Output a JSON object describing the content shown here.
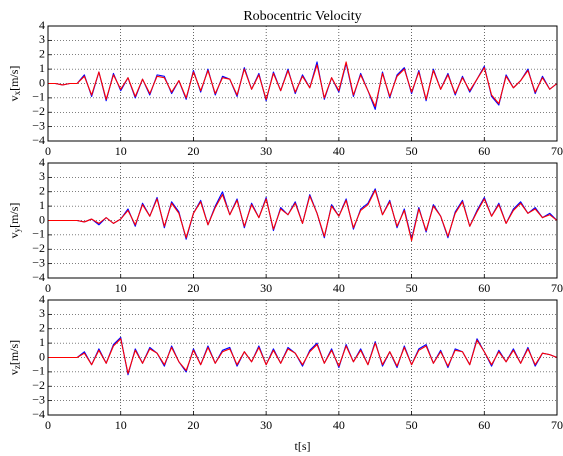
{
  "chart_data": [
    {
      "type": "line",
      "title": "Robocentric Velocity",
      "ylabel": [
        "v",
        "x",
        "[m/s]"
      ],
      "xlim": [
        0,
        70
      ],
      "ylim": [
        -4,
        4
      ],
      "xticks": [
        0,
        10,
        20,
        30,
        40,
        50,
        60,
        70
      ],
      "yticks": [
        {
          "value": -4,
          "label": "−4"
        },
        {
          "value": -3,
          "label": "−3"
        },
        {
          "value": -2,
          "label": "−2"
        },
        {
          "value": -1,
          "label": "−1"
        },
        0,
        1,
        2,
        3,
        4
      ],
      "grid": true,
      "x": [
        0,
        1,
        2,
        3,
        4,
        5,
        6,
        7,
        8,
        9,
        10,
        11,
        12,
        13,
        14,
        15,
        16,
        17,
        18,
        19,
        20,
        21,
        22,
        23,
        24,
        25,
        26,
        27,
        28,
        29,
        30,
        31,
        32,
        33,
        34,
        35,
        36,
        37,
        38,
        39,
        40,
        41,
        42,
        43,
        44,
        45,
        46,
        47,
        48,
        49,
        50,
        51,
        52,
        53,
        54,
        55,
        56,
        57,
        58,
        59,
        60,
        61,
        62,
        63,
        64,
        65,
        66,
        67,
        68,
        69,
        70
      ],
      "series": [
        {
          "color": "#0000ff",
          "values": [
            0,
            0,
            -0.1,
            0,
            0,
            0.6,
            -0.9,
            0.8,
            -1.2,
            0.7,
            -0.5,
            0.4,
            -1,
            0.3,
            -0.8,
            0.6,
            0.5,
            -0.7,
            0.2,
            -1.1,
            0.9,
            -0.6,
            1.0,
            -0.8,
            0.5,
            0.3,
            -0.9,
            1.1,
            -0.4,
            0.7,
            -1.2,
            0.8,
            -0.5,
            1.0,
            -0.7,
            0.6,
            -0.3,
            1.5,
            -1.1,
            0.4,
            -0.6,
            1.4,
            -0.9,
            0.7,
            -0.5,
            -1.8,
            0.8,
            -1.0,
            0.6,
            1.1,
            -0.7,
            0.9,
            -1.2,
            1.0,
            -0.4,
            0.7,
            -0.8,
            0.5,
            -0.6,
            0.3,
            1.2,
            -0.9,
            -1.5,
            0.6,
            -0.3,
            0.2,
            1.0,
            -0.7,
            0.5,
            -0.4,
            0
          ]
        },
        {
          "color": "#ff0000",
          "values": [
            0,
            0,
            -0.1,
            0,
            0,
            0.5,
            -0.8,
            0.8,
            -1.1,
            0.6,
            -0.4,
            0.4,
            -0.9,
            0.3,
            -0.7,
            0.5,
            0.4,
            -0.6,
            0.2,
            -1.0,
            0.8,
            -0.5,
            0.9,
            -0.7,
            0.4,
            0.3,
            -0.8,
            1.0,
            -0.4,
            0.6,
            -1.1,
            0.7,
            -0.5,
            0.9,
            -0.6,
            0.5,
            -0.3,
            1.3,
            -1.0,
            0.4,
            -0.5,
            1.5,
            -0.8,
            0.6,
            -0.5,
            -1.6,
            0.7,
            -0.9,
            0.5,
            1.0,
            -0.6,
            0.8,
            -1.1,
            0.9,
            -0.4,
            0.6,
            -0.7,
            0.4,
            -0.5,
            0.3,
            1.1,
            -0.8,
            -1.4,
            0.5,
            -0.3,
            0.2,
            0.9,
            -0.6,
            0.4,
            -0.4,
            0
          ]
        }
      ]
    },
    {
      "type": "line",
      "ylabel": [
        "v",
        "y",
        "[m/s]"
      ],
      "xlim": [
        0,
        70
      ],
      "ylim": [
        -4,
        4
      ],
      "xticks": [
        0,
        10,
        20,
        30,
        40,
        50,
        60,
        70
      ],
      "yticks": [
        {
          "value": -4,
          "label": "−4"
        },
        {
          "value": -3,
          "label": "−3"
        },
        {
          "value": -2,
          "label": "−2"
        },
        {
          "value": -1,
          "label": "−1"
        },
        0,
        1,
        2,
        3,
        4
      ],
      "grid": true,
      "x": [
        0,
        1,
        2,
        3,
        4,
        5,
        6,
        7,
        8,
        9,
        10,
        11,
        12,
        13,
        14,
        15,
        16,
        17,
        18,
        19,
        20,
        21,
        22,
        23,
        24,
        25,
        26,
        27,
        28,
        29,
        30,
        31,
        32,
        33,
        34,
        35,
        36,
        37,
        38,
        39,
        40,
        41,
        42,
        43,
        44,
        45,
        46,
        47,
        48,
        49,
        50,
        51,
        52,
        53,
        54,
        55,
        56,
        57,
        58,
        59,
        60,
        61,
        62,
        63,
        64,
        65,
        66,
        67,
        68,
        69,
        70
      ],
      "series": [
        {
          "color": "#0000ff",
          "values": [
            0,
            0,
            0,
            0,
            0,
            -0.1,
            0.1,
            -0.3,
            0.2,
            -0.2,
            0.1,
            0.8,
            -0.4,
            1.2,
            0.3,
            1.6,
            -0.5,
            1.3,
            0.6,
            -1.3,
            0.5,
            1.4,
            -0.3,
            1.0,
            2.0,
            0.4,
            1.5,
            -0.5,
            1.2,
            0.2,
            1.6,
            -0.7,
            0.9,
            0.4,
            1.3,
            -0.2,
            1.8,
            0.5,
            -1.2,
            1.1,
            0.3,
            1.5,
            -0.6,
            0.8,
            1.2,
            2.2,
            0.4,
            1.4,
            -0.5,
            0.8,
            -1.3,
            0.9,
            -0.8,
            1.1,
            0.3,
            -1.2,
            0.6,
            1.4,
            -0.4,
            0.7,
            1.6,
            0.3,
            1.2,
            -0.2,
            0.8,
            1.3,
            0.5,
            0.9,
            0.2,
            0.5,
            0
          ]
        },
        {
          "color": "#ff0000",
          "values": [
            0,
            0,
            0,
            0,
            0,
            -0.1,
            0.1,
            -0.2,
            0.2,
            -0.2,
            0.1,
            0.7,
            -0.3,
            1.1,
            0.3,
            1.5,
            -0.4,
            1.2,
            0.5,
            -1.2,
            0.5,
            1.3,
            -0.3,
            0.9,
            1.8,
            0.4,
            1.4,
            -0.4,
            1.1,
            0.2,
            1.5,
            -0.6,
            0.8,
            0.4,
            1.2,
            -0.2,
            1.7,
            0.5,
            -1.1,
            1.0,
            0.3,
            1.4,
            -0.5,
            0.7,
            1.1,
            2.1,
            0.4,
            1.3,
            -0.4,
            0.7,
            -1.4,
            0.8,
            -0.7,
            1.0,
            0.3,
            -1.1,
            0.5,
            1.3,
            -0.4,
            0.6,
            1.5,
            0.3,
            1.1,
            -0.2,
            0.7,
            1.2,
            0.5,
            0.8,
            0.2,
            0.4,
            0
          ]
        }
      ]
    },
    {
      "type": "line",
      "ylabel": [
        "v",
        "z",
        "[m/s]"
      ],
      "xlabel": "t[s]",
      "xlim": [
        0,
        70
      ],
      "ylim": [
        -4,
        4
      ],
      "xticks": [
        0,
        10,
        20,
        30,
        40,
        50,
        60,
        70
      ],
      "yticks": [
        {
          "value": -4,
          "label": "−4"
        },
        {
          "value": -3,
          "label": "−3"
        },
        {
          "value": -2,
          "label": "−2"
        },
        {
          "value": -1,
          "label": "−1"
        },
        0,
        1,
        2,
        3,
        4
      ],
      "grid": true,
      "x": [
        0,
        1,
        2,
        3,
        4,
        5,
        6,
        7,
        8,
        9,
        10,
        11,
        12,
        13,
        14,
        15,
        16,
        17,
        18,
        19,
        20,
        21,
        22,
        23,
        24,
        25,
        26,
        27,
        28,
        29,
        30,
        31,
        32,
        33,
        34,
        35,
        36,
        37,
        38,
        39,
        40,
        41,
        42,
        43,
        44,
        45,
        46,
        47,
        48,
        49,
        50,
        51,
        52,
        53,
        54,
        55,
        56,
        57,
        58,
        59,
        60,
        61,
        62,
        63,
        64,
        65,
        66,
        67,
        68,
        69,
        70
      ],
      "series": [
        {
          "color": "#0000ff",
          "values": [
            0,
            0,
            0,
            0,
            0,
            0.4,
            -0.5,
            0.6,
            -0.4,
            0.9,
            1.4,
            -1.2,
            0.6,
            -0.4,
            0.7,
            0.3,
            -0.6,
            0.8,
            -0.3,
            -1.0,
            0.6,
            -0.5,
            0.8,
            -0.4,
            0.5,
            0.7,
            -0.6,
            0.4,
            -0.3,
            0.8,
            -0.5,
            0.6,
            -0.4,
            0.7,
            0.3,
            -0.6,
            0.5,
            1.0,
            -0.4,
            0.6,
            -0.7,
            0.9,
            -0.3,
            0.6,
            -0.5,
            1.1,
            -0.6,
            0.4,
            -0.7,
            0.8,
            -0.5,
            0.6,
            0.9,
            -0.4,
            0.5,
            -0.7,
            0.6,
            0.4,
            -0.5,
            1.3,
            0.4,
            -0.6,
            0.5,
            -0.3,
            0.6,
            -0.4,
            0.7,
            -0.6,
            0.3,
            0.2,
            0
          ]
        },
        {
          "color": "#ff0000",
          "values": [
            0,
            0,
            0,
            0,
            0,
            0.3,
            -0.5,
            0.5,
            -0.4,
            0.8,
            1.3,
            -1.1,
            0.5,
            -0.4,
            0.6,
            0.3,
            -0.5,
            0.7,
            -0.3,
            -0.9,
            0.5,
            -0.5,
            0.7,
            -0.4,
            0.4,
            0.6,
            -0.5,
            0.4,
            -0.3,
            0.7,
            -0.5,
            0.5,
            -0.4,
            0.6,
            0.3,
            -0.5,
            0.4,
            0.9,
            -0.4,
            0.5,
            -0.6,
            0.8,
            -0.3,
            0.5,
            -0.5,
            1.0,
            -0.5,
            0.4,
            -0.6,
            0.7,
            -0.5,
            0.5,
            0.8,
            -0.4,
            0.4,
            -0.6,
            0.5,
            0.4,
            -0.5,
            1.2,
            0.4,
            -0.5,
            0.4,
            -0.3,
            0.5,
            -0.4,
            0.6,
            -0.5,
            0.3,
            0.2,
            0
          ]
        }
      ]
    }
  ]
}
